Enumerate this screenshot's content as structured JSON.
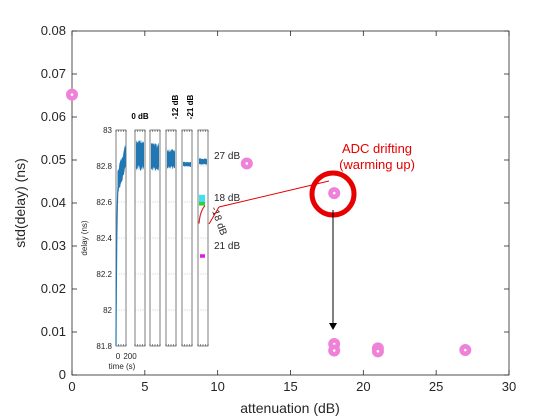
{
  "chart_data": {
    "type": "scatter",
    "xlabel": "attenuation (dB)",
    "ylabel": "std(delay) (ns)",
    "xlim": [
      0,
      30
    ],
    "ylim": [
      0,
      0.08
    ],
    "x_ticks": [
      "0",
      "5",
      "10",
      "15",
      "20",
      "25",
      "30"
    ],
    "y_ticks": [
      "0",
      "0.01",
      "0.02",
      "0.03",
      "0.04",
      "0.05",
      "0.06",
      "0.07",
      "0.08"
    ],
    "series": [
      {
        "color": "#ee82d8",
        "points": [
          {
            "x": 0,
            "y": 0.0652
          },
          {
            "x": 12,
            "y": 0.0492
          },
          {
            "x": 18,
            "y": 0.0423
          },
          {
            "x": 18,
            "y": 0.0072
          },
          {
            "x": 18,
            "y": 0.0057
          },
          {
            "x": 21,
            "y": 0.0062
          },
          {
            "x": 21,
            "y": 0.0055
          },
          {
            "x": 27,
            "y": 0.0058
          }
        ]
      }
    ],
    "annotations": {
      "drift_text_1": "ADC drifting",
      "drift_text_2": "(warming up)",
      "drift_color": "#e60000"
    },
    "inset": {
      "ylabel": "delay (ns)",
      "xlabel": "time (s)",
      "x_ticks": [
        "0",
        "200"
      ],
      "y_ticks": [
        "83",
        "82.8",
        "82.6",
        "82.4",
        "82.2",
        "82",
        "81.8"
      ],
      "ylim": [
        81.8,
        83
      ],
      "panel_labels": [
        "0 dB",
        "-12 dB",
        "-21 dB"
      ],
      "side_labels": {
        "db27": "27 dB",
        "db18": "18 dB",
        "db21": "21 dB",
        "db_neg18": "-18 dB"
      },
      "colors": {
        "trace": "#1f77b4",
        "cyan": "#40e0f0",
        "green": "#30d040",
        "red": "#d62728",
        "magenta": "#e020e0"
      }
    }
  }
}
